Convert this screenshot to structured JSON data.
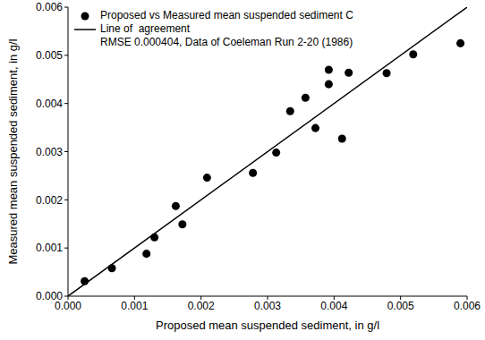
{
  "chart_data": {
    "type": "scatter",
    "xlabel": "Proposed mean suspended sediment, in g/l",
    "ylabel": "Measured mean suspended sediment, in g/l",
    "xlim": [
      0,
      0.006
    ],
    "ylim": [
      0,
      0.006
    ],
    "xticks": [
      {
        "value": 0,
        "label": "0.000"
      },
      {
        "value": 0.001,
        "label": "0.001"
      },
      {
        "value": 0.002,
        "label": "0.002"
      },
      {
        "value": 0.003,
        "label": "0.003"
      },
      {
        "value": 0.004,
        "label": "0.004"
      },
      {
        "value": 0.005,
        "label": "0.005"
      },
      {
        "value": 0.006,
        "label": "0.006"
      }
    ],
    "yticks": [
      {
        "value": 0,
        "label": "0.000"
      },
      {
        "value": 0.001,
        "label": "0.001"
      },
      {
        "value": 0.002,
        "label": "0.002"
      },
      {
        "value": 0.003,
        "label": "0.003"
      },
      {
        "value": 0.004,
        "label": "0.004"
      },
      {
        "value": 0.005,
        "label": "0.005"
      },
      {
        "value": 0.006,
        "label": "0.006"
      }
    ],
    "legend": "upper left",
    "grid": false,
    "annotation": "RMSE 0.000404, Data of Coeleman Run 2-20 (1986)",
    "series": [
      {
        "name": "Proposed vs Measured mean suspended sediment C",
        "type": "scatter",
        "marker": "circle",
        "color": "#000000",
        "x": [
          0.00025,
          0.00066,
          0.00118,
          0.0013,
          0.00162,
          0.00172,
          0.00209,
          0.00278,
          0.00313,
          0.00334,
          0.00357,
          0.00372,
          0.00392,
          0.00392,
          0.00412,
          0.00422,
          0.00479,
          0.00519,
          0.0059
        ],
        "values": [
          0.00031,
          0.00058,
          0.00088,
          0.00122,
          0.00187,
          0.00149,
          0.00246,
          0.00256,
          0.00298,
          0.00384,
          0.00412,
          0.00349,
          0.0047,
          0.0044,
          0.00327,
          0.00464,
          0.00463,
          0.00502,
          0.00525
        ]
      },
      {
        "name": "Line of  agreement",
        "type": "line",
        "line_style": "solid",
        "color": "#000000",
        "x": [
          0,
          0.006
        ],
        "values": [
          0,
          0.006
        ]
      }
    ]
  }
}
